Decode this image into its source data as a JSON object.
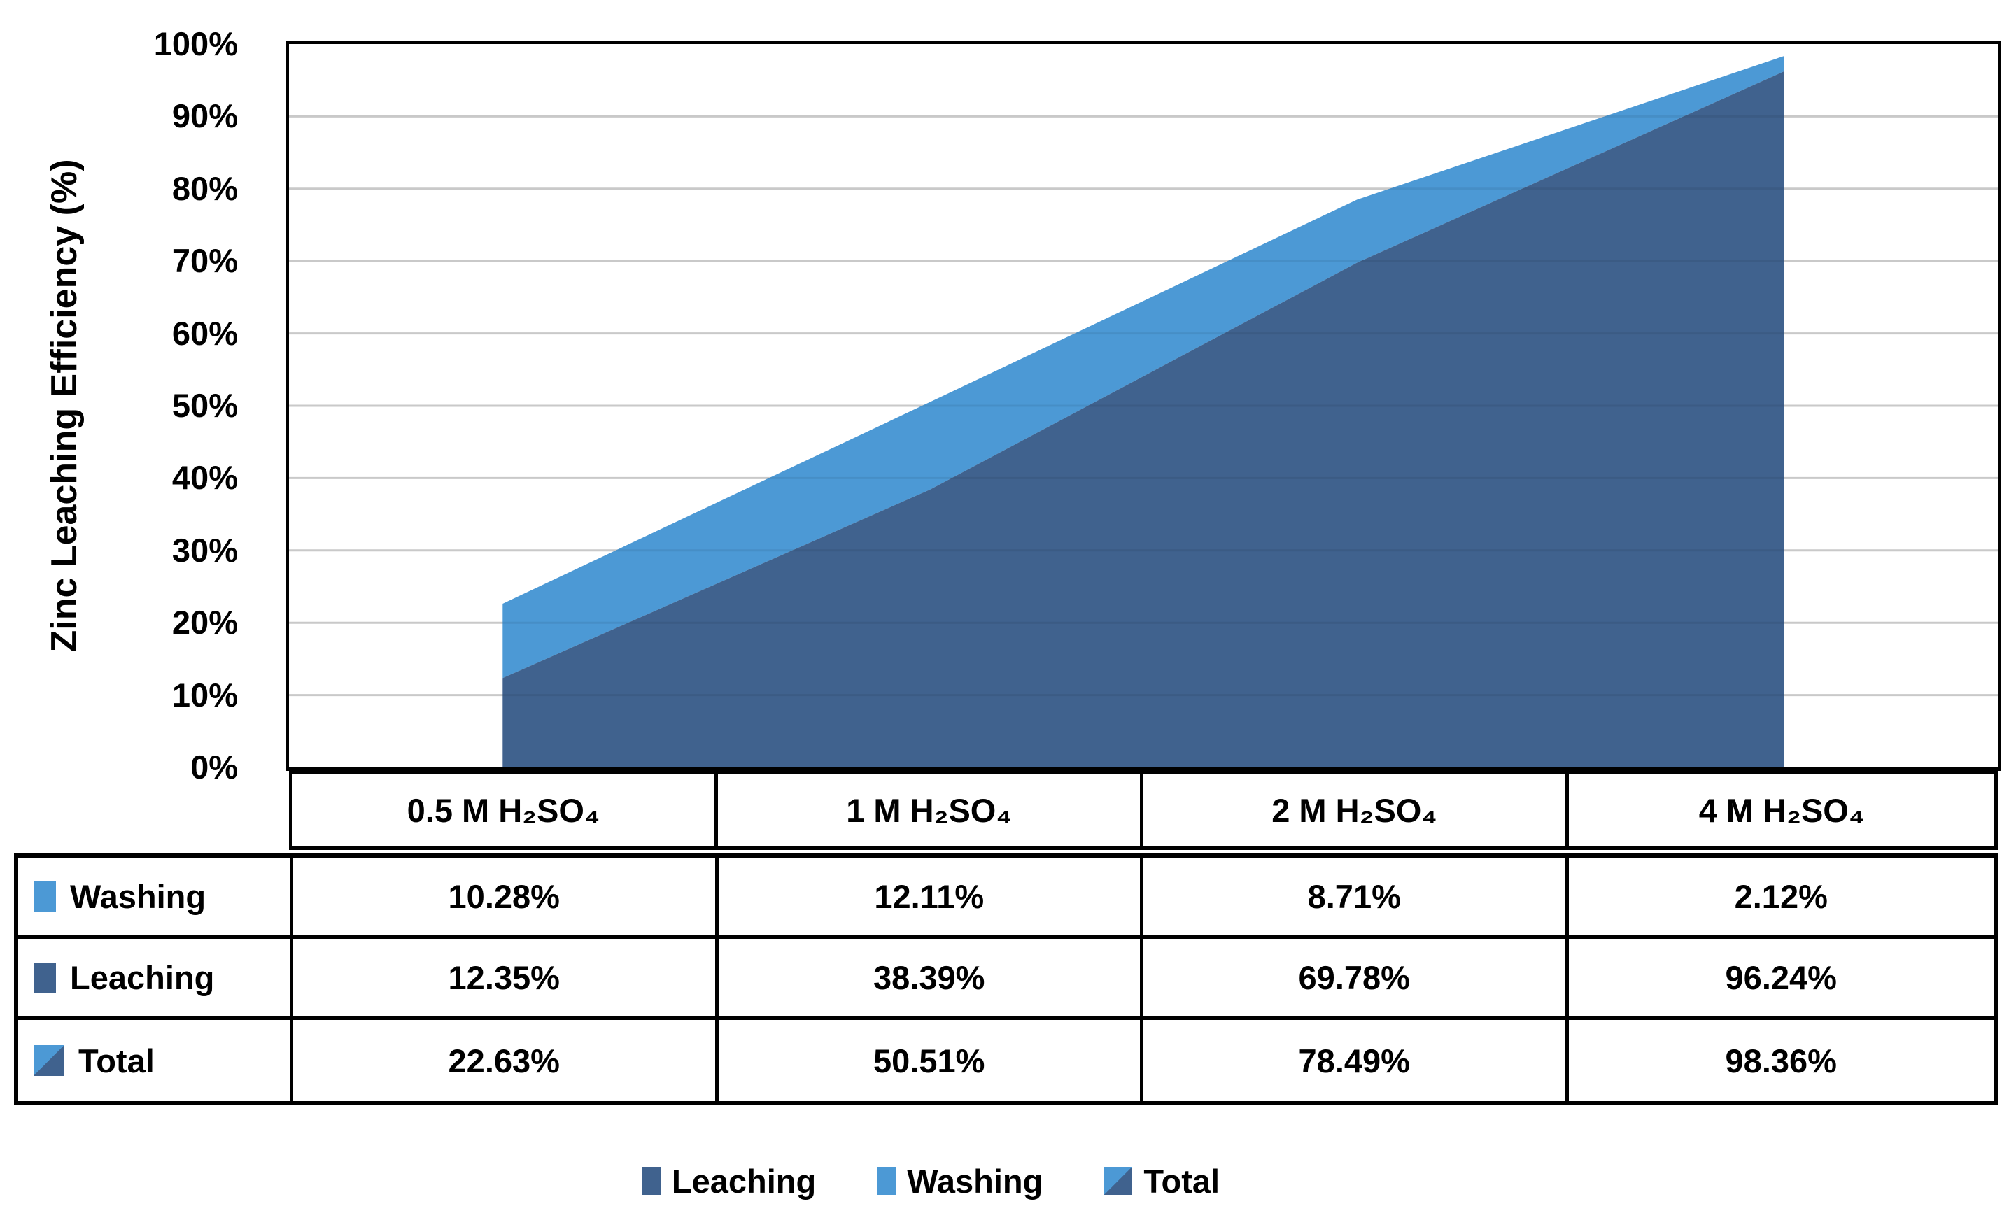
{
  "chart_data": {
    "type": "area",
    "stacked": true,
    "title": "",
    "ylabel": "Zinc Leaching Efficiency (%)",
    "xlabel": "",
    "categories": [
      "0.5 M H₂SO₄",
      "1 M H₂SO₄",
      "2 M H₂SO₄",
      "4 M H₂SO₄"
    ],
    "series": [
      {
        "name": "Leaching",
        "values": [
          12.35,
          38.39,
          69.78,
          96.24
        ]
      },
      {
        "name": "Washing",
        "values": [
          10.28,
          12.11,
          8.71,
          2.12
        ]
      },
      {
        "name": "Total",
        "values": [
          22.63,
          50.51,
          78.49,
          98.36
        ]
      }
    ],
    "ylim": [
      0,
      100
    ],
    "yticks": [
      "0%",
      "10%",
      "20%",
      "30%",
      "40%",
      "50%",
      "60%",
      "70%",
      "80%",
      "90%",
      "100%"
    ],
    "grid": "horizontal",
    "gridline_color": "#D9D9D9",
    "legend_position": "bottom",
    "colors": {
      "leaching": "#40628E",
      "washing": "#4C99D5"
    }
  },
  "table": {
    "column_headers": [
      "0.5 M H₂SO₄",
      "1 M H₂SO₄",
      "2 M H₂SO₄",
      "4 M H₂SO₄"
    ],
    "rows": [
      {
        "label": "Washing",
        "swatch": "washing",
        "values": [
          "10.28%",
          "12.11%",
          "8.71%",
          "2.12%"
        ]
      },
      {
        "label": "Leaching",
        "swatch": "leaching",
        "values": [
          "12.35%",
          "38.39%",
          "69.78%",
          "96.24%"
        ]
      },
      {
        "label": "Total",
        "swatch": "total",
        "values": [
          "22.63%",
          "50.51%",
          "78.49%",
          "98.36%"
        ]
      }
    ]
  },
  "legend": {
    "items": [
      {
        "label": "Leaching",
        "swatch": "leaching"
      },
      {
        "label": "Washing",
        "swatch": "washing"
      },
      {
        "label": "Total",
        "swatch": "total"
      }
    ]
  }
}
